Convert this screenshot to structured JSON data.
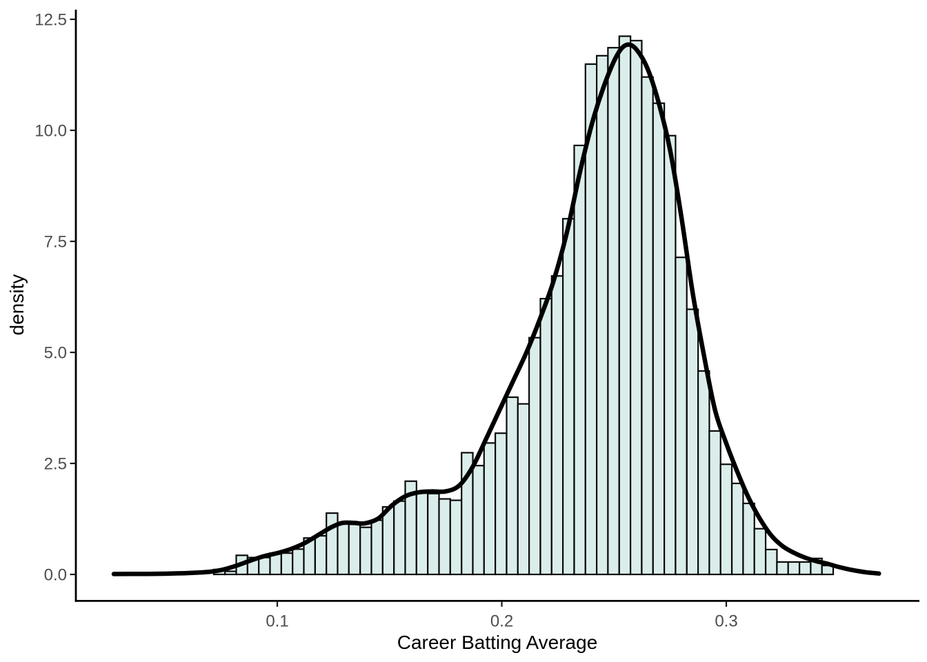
{
  "chart_data": {
    "type": "bar",
    "subtype": "histogram_with_density_overlay",
    "title": "",
    "xlabel": "Career Batting Average",
    "ylabel": "density",
    "x_ticks": [
      0.1,
      0.2,
      0.3
    ],
    "x_tick_labels": [
      "0.1",
      "0.2",
      "0.3"
    ],
    "y_ticks": [
      0.0,
      2.5,
      5.0,
      7.5,
      10.0,
      12.5
    ],
    "y_tick_labels": [
      "0.0",
      "2.5",
      "5.0",
      "7.5",
      "10.0",
      "12.5"
    ],
    "xlim": [
      0.0103,
      0.3861
    ],
    "ylim": [
      0,
      12.72
    ],
    "grid": "off",
    "legend_position": "none",
    "bins": {
      "start": 0.0717,
      "width": 0.005017,
      "heights": [
        0.11,
        0.07,
        0.43,
        0.38,
        0.38,
        0.48,
        0.48,
        0.57,
        0.82,
        0.87,
        1.38,
        1.16,
        1.13,
        1.06,
        1.22,
        1.52,
        1.65,
        2.1,
        1.83,
        1.82,
        1.7,
        1.67,
        2.74,
        2.45,
        2.96,
        3.18,
        3.99,
        3.84,
        5.33,
        6.21,
        6.72,
        8.01,
        9.66,
        11.49,
        11.68,
        11.86,
        12.12,
        12.02,
        11.2,
        10.61,
        9.88,
        7.14,
        5.97,
        4.58,
        3.23,
        2.48,
        2.05,
        1.6,
        1.03,
        0.56,
        0.28,
        0.28,
        0.28,
        0.36,
        0.2
      ]
    },
    "density_curve": [
      [
        0.0272,
        0.01
      ],
      [
        0.04,
        0.012
      ],
      [
        0.052,
        0.02
      ],
      [
        0.062,
        0.035
      ],
      [
        0.07,
        0.06
      ],
      [
        0.076,
        0.11
      ],
      [
        0.082,
        0.2
      ],
      [
        0.088,
        0.31
      ],
      [
        0.094,
        0.41
      ],
      [
        0.1,
        0.48
      ],
      [
        0.106,
        0.57
      ],
      [
        0.112,
        0.7
      ],
      [
        0.118,
        0.88
      ],
      [
        0.124,
        1.06
      ],
      [
        0.129,
        1.16
      ],
      [
        0.134,
        1.16
      ],
      [
        0.139,
        1.15
      ],
      [
        0.145,
        1.26
      ],
      [
        0.151,
        1.55
      ],
      [
        0.157,
        1.76
      ],
      [
        0.163,
        1.85
      ],
      [
        0.169,
        1.87
      ],
      [
        0.175,
        1.87
      ],
      [
        0.181,
        2.0
      ],
      [
        0.187,
        2.42
      ],
      [
        0.193,
        3.05
      ],
      [
        0.199,
        3.7
      ],
      [
        0.205,
        4.35
      ],
      [
        0.211,
        5.0
      ],
      [
        0.217,
        5.75
      ],
      [
        0.223,
        6.6
      ],
      [
        0.229,
        7.7
      ],
      [
        0.235,
        9.1
      ],
      [
        0.241,
        10.3
      ],
      [
        0.247,
        11.2
      ],
      [
        0.252,
        11.75
      ],
      [
        0.256,
        11.93
      ],
      [
        0.26,
        11.82
      ],
      [
        0.265,
        11.38
      ],
      [
        0.27,
        10.6
      ],
      [
        0.275,
        9.55
      ],
      [
        0.28,
        8.05
      ],
      [
        0.285,
        6.35
      ],
      [
        0.29,
        4.95
      ],
      [
        0.295,
        3.7
      ],
      [
        0.3,
        2.95
      ],
      [
        0.305,
        2.3
      ],
      [
        0.31,
        1.72
      ],
      [
        0.315,
        1.25
      ],
      [
        0.32,
        0.88
      ],
      [
        0.325,
        0.64
      ],
      [
        0.33,
        0.49
      ],
      [
        0.335,
        0.38
      ],
      [
        0.34,
        0.3
      ],
      [
        0.345,
        0.24
      ],
      [
        0.35,
        0.17
      ],
      [
        0.356,
        0.1
      ],
      [
        0.362,
        0.05
      ],
      [
        0.368,
        0.02
      ]
    ],
    "colors": {
      "background": "#FFFFFF",
      "bar_fill": "#DAEDEB",
      "bar_stroke": "#0A0A0A",
      "curve": "#000000",
      "axis_line": "#000000",
      "tick_mark": "#1A1A1A",
      "tick_label": "#4D4D4D",
      "axis_title": "#000000"
    }
  }
}
